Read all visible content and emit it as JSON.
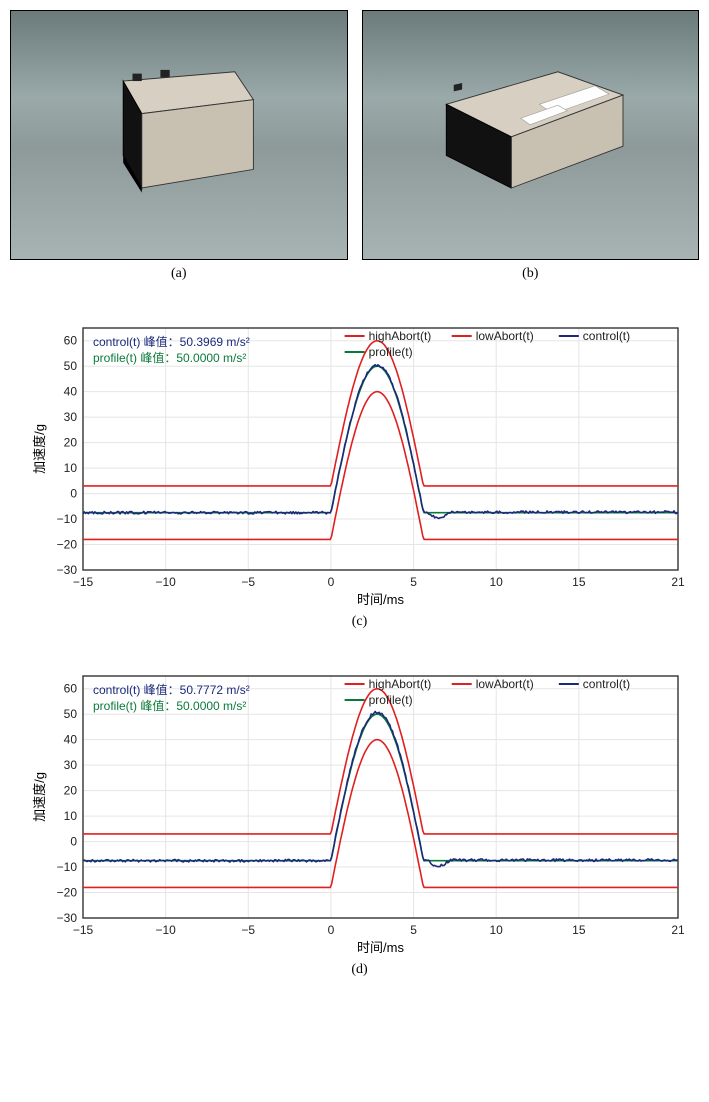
{
  "photos": {
    "a": {
      "caption": "(a)"
    },
    "b": {
      "caption": "(b)"
    }
  },
  "chart_common": {
    "xlabel": "时间/ms",
    "ylabel": "加速度/g",
    "xlim": [
      -15,
      21
    ],
    "ylim": [
      -30,
      65
    ],
    "xticks": [
      -15,
      -10,
      -5,
      0,
      5,
      10,
      15,
      21
    ],
    "yticks": [
      -30,
      -20,
      -10,
      0,
      10,
      20,
      30,
      40,
      50,
      60
    ],
    "label_fontsize": 13,
    "tick_fontsize": 12,
    "grid_color": "#e5e5e5",
    "background_color": "#ffffff",
    "axis_color": "#333333",
    "legend": {
      "items": [
        {
          "label": "highAbort(t)",
          "color": "#e02020"
        },
        {
          "label": "lowAbort(t)",
          "color": "#e02020"
        },
        {
          "label": "control(t)",
          "color": "#1a2a7a"
        },
        {
          "label": "profile(t)",
          "color": "#0a7a3a"
        }
      ],
      "fontsize": 12
    },
    "pulse": {
      "t_start": 0,
      "t_end": 5.6,
      "t_peak": 2.8
    },
    "highAbort": {
      "peak": 60,
      "left_flat": 3,
      "right_flat": 3,
      "color": "#e02020",
      "width": 1.6
    },
    "lowAbort": {
      "peak": 40,
      "left_flat": -18,
      "right_flat": -18,
      "color": "#e02020",
      "width": 1.6
    },
    "profile": {
      "peak": 50,
      "left_flat": -7.5,
      "right_flat": -7.5,
      "color": "#0a7a3a",
      "width": 1.6
    },
    "control_noise": 0.5
  },
  "charts": [
    {
      "caption": "(c)",
      "annotations": [
        {
          "text": "control(t) 峰值：50.3969 m/s²",
          "color": "#1a2a7a"
        },
        {
          "text": "profile(t) 峰值：50.0000 m/s²",
          "color": "#0a7a3a"
        }
      ],
      "control": {
        "peak": 50.3969,
        "left_flat": -7.5,
        "right_flat": -7.3,
        "color": "#1a2a7a",
        "width": 1.6
      }
    },
    {
      "caption": "(d)",
      "annotations": [
        {
          "text": "control(t) 峰值：50.7772 m/s²",
          "color": "#1a2a7a"
        },
        {
          "text": "profile(t) 峰值：50.0000 m/s²",
          "color": "#0a7a3a"
        }
      ],
      "control": {
        "peak": 50.7772,
        "left_flat": -7.5,
        "right_flat": -7.3,
        "color": "#1a2a7a",
        "width": 1.6
      }
    }
  ]
}
